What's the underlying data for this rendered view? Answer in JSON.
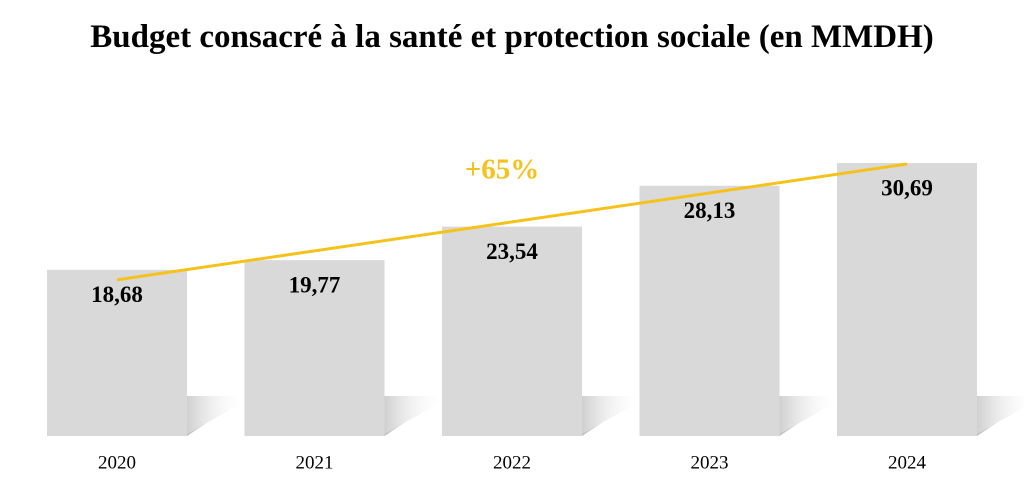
{
  "chart_data": {
    "type": "bar",
    "title": "Budget consacré à la santé et protection sociale (en MMDH)",
    "categories": [
      "2020",
      "2021",
      "2022",
      "2023",
      "2024"
    ],
    "values": [
      18.68,
      19.77,
      23.54,
      28.13,
      30.69
    ],
    "value_labels": [
      "18,68",
      "19,77",
      "23,54",
      "28,13",
      "30,69"
    ],
    "color": "#d9d9d9",
    "annotation": "+65%",
    "annotation_color": "#f5c21b"
  }
}
